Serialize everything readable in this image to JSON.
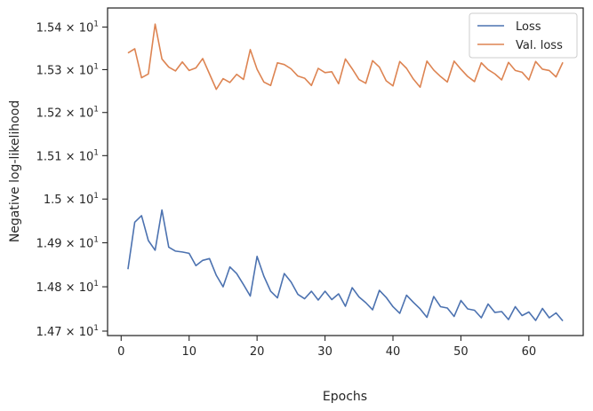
{
  "chart_data": {
    "type": "line",
    "xlabel": "Epochs",
    "ylabel": "Negative log-likelihood",
    "xlim": [
      -2,
      68
    ],
    "ylim": [
      14.69,
      15.445
    ],
    "log_y": true,
    "grid": false,
    "legend_position": "top-right",
    "x_ticks": [
      {
        "value": 0,
        "label": "0"
      },
      {
        "value": 10,
        "label": "10"
      },
      {
        "value": 20,
        "label": "20"
      },
      {
        "value": 30,
        "label": "30"
      },
      {
        "value": 40,
        "label": "40"
      },
      {
        "value": 50,
        "label": "50"
      },
      {
        "value": 60,
        "label": "60"
      }
    ],
    "y_ticks": [
      {
        "value": 14.7,
        "mantissa": "1.47",
        "times": "×",
        "base": "10",
        "exp": "1"
      },
      {
        "value": 14.8,
        "mantissa": "1.48",
        "times": "×",
        "base": "10",
        "exp": "1"
      },
      {
        "value": 14.9,
        "mantissa": "1.49",
        "times": "×",
        "base": "10",
        "exp": "1"
      },
      {
        "value": 15.0,
        "mantissa": "1.5",
        "times": "×",
        "base": "10",
        "exp": "1"
      },
      {
        "value": 15.1,
        "mantissa": "1.51",
        "times": "×",
        "base": "10",
        "exp": "1"
      },
      {
        "value": 15.2,
        "mantissa": "1.52",
        "times": "×",
        "base": "10",
        "exp": "1"
      },
      {
        "value": 15.3,
        "mantissa": "1.53",
        "times": "×",
        "base": "10",
        "exp": "1"
      },
      {
        "value": 15.4,
        "mantissa": "1.54",
        "times": "×",
        "base": "10",
        "exp": "1"
      }
    ],
    "x": [
      1,
      2,
      3,
      4,
      5,
      6,
      7,
      8,
      9,
      10,
      11,
      12,
      13,
      14,
      15,
      16,
      17,
      18,
      19,
      20,
      21,
      22,
      23,
      24,
      25,
      26,
      27,
      28,
      29,
      30,
      31,
      32,
      33,
      34,
      35,
      36,
      37,
      38,
      39,
      40,
      41,
      42,
      43,
      44,
      45,
      46,
      47,
      48,
      49,
      50,
      51,
      52,
      53,
      54,
      55,
      56,
      57,
      58,
      59,
      60,
      61,
      62,
      63,
      64,
      65
    ],
    "series": [
      {
        "name": "Loss",
        "color": "#4c72b0",
        "values": [
          14.84,
          14.947,
          14.962,
          14.905,
          14.883,
          14.975,
          14.89,
          14.881,
          14.879,
          14.876,
          14.848,
          14.86,
          14.864,
          14.826,
          14.8,
          14.845,
          14.83,
          14.805,
          14.779,
          14.869,
          14.824,
          14.79,
          14.775,
          14.83,
          14.811,
          14.783,
          14.773,
          14.79,
          14.77,
          14.79,
          14.771,
          14.784,
          14.756,
          14.798,
          14.777,
          14.764,
          14.748,
          14.792,
          14.776,
          14.755,
          14.74,
          14.781,
          14.765,
          14.75,
          14.731,
          14.778,
          14.755,
          14.752,
          14.733,
          14.769,
          14.75,
          14.747,
          14.73,
          14.761,
          14.742,
          14.744,
          14.726,
          14.755,
          14.735,
          14.743,
          14.724,
          14.751,
          14.73,
          14.741,
          14.723
        ]
      },
      {
        "name": "Val. loss",
        "color": "#dd8452",
        "values": [
          15.339,
          15.349,
          15.281,
          15.29,
          15.407,
          15.325,
          15.306,
          15.297,
          15.318,
          15.298,
          15.304,
          15.326,
          15.29,
          15.254,
          15.279,
          15.27,
          15.289,
          15.277,
          15.347,
          15.301,
          15.271,
          15.263,
          15.316,
          15.312,
          15.302,
          15.285,
          15.28,
          15.263,
          15.303,
          15.293,
          15.295,
          15.267,
          15.325,
          15.302,
          15.277,
          15.268,
          15.321,
          15.306,
          15.274,
          15.262,
          15.319,
          15.303,
          15.278,
          15.259,
          15.32,
          15.299,
          15.284,
          15.271,
          15.32,
          15.301,
          15.284,
          15.272,
          15.316,
          15.3,
          15.29,
          15.276,
          15.317,
          15.298,
          15.294,
          15.276,
          15.319,
          15.301,
          15.298,
          15.283,
          15.317
        ]
      }
    ]
  }
}
